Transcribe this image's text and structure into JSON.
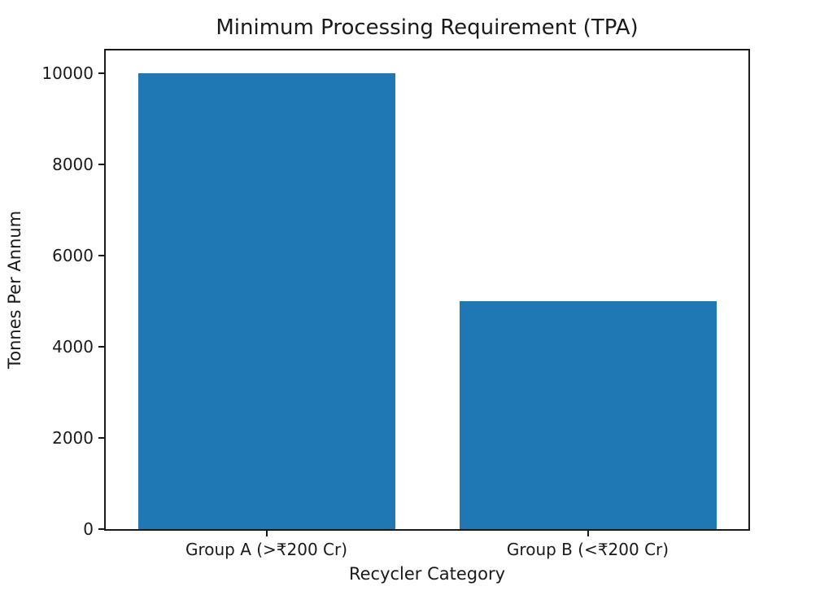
{
  "chart_data": {
    "type": "bar",
    "title": "Minimum Processing Requirement (TPA)",
    "xlabel": "Recycler Category",
    "ylabel": "Tonnes Per Annum",
    "categories": [
      "Group A (>₹200 Cr)",
      "Group B (<₹200 Cr)"
    ],
    "values": [
      10000,
      5000
    ],
    "yticks": [
      0,
      2000,
      4000,
      6000,
      8000,
      10000
    ],
    "ylim": [
      0,
      10500
    ],
    "bar_width_fraction": 0.8,
    "grid": false,
    "legend": null,
    "colors": {
      "bar": "#1f77b4",
      "text": "#1a1a1a",
      "spine": "#1a1a1a",
      "background": "#ffffff"
    }
  }
}
